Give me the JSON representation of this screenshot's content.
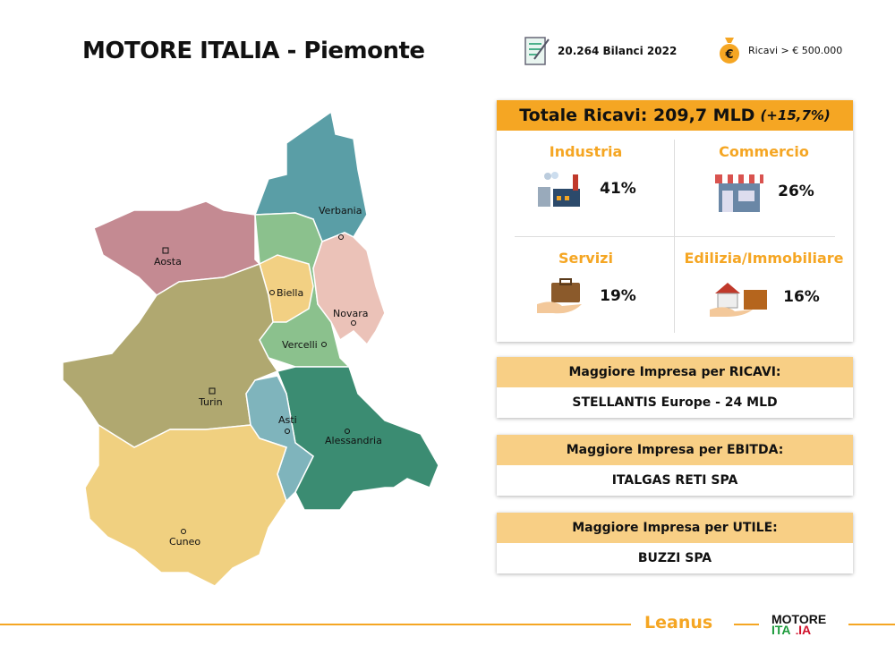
{
  "title": "MOTORE ITALIA - Piemonte",
  "stats": {
    "bilanci": "20.264 Bilanci 2022",
    "ricavi": "Ricavi > € 500.000"
  },
  "totale": {
    "label": "Totale Ricavi: 209,7 MLD",
    "change": "(+15,7%)"
  },
  "sectors": [
    {
      "name": "Industria",
      "pct": "41%",
      "icon": "factory-icon"
    },
    {
      "name": "Commercio",
      "pct": "26%",
      "icon": "shop-icon"
    },
    {
      "name": "Servizi",
      "pct": "19%",
      "icon": "briefcase-hand-icon"
    },
    {
      "name": "Edilizia/Immobiliare",
      "pct": "16%",
      "icon": "house-bricks-icon"
    }
  ],
  "top": [
    {
      "label": "Maggiore Impresa per RICAVI:",
      "value": "STELLANTIS Europe - 24 MLD"
    },
    {
      "label": "Maggiore Impresa per EBITDA:",
      "value": "ITALGAS RETI SPA"
    },
    {
      "label": "Maggiore Impresa per UTILE:",
      "value": "BUZZI SPA"
    }
  ],
  "map": {
    "provinces": [
      "Verbania",
      "Aosta",
      "Biella",
      "Novara",
      "Vercelli",
      "Turin",
      "Asti",
      "Alessandria",
      "Cuneo"
    ]
  },
  "footer": {
    "leanus": "Leanus",
    "logo_top": "MOTORE",
    "logo_bottom": "ITALIA"
  },
  "colors": {
    "accent": "#f5a623",
    "light_accent": "#f8cf85"
  }
}
